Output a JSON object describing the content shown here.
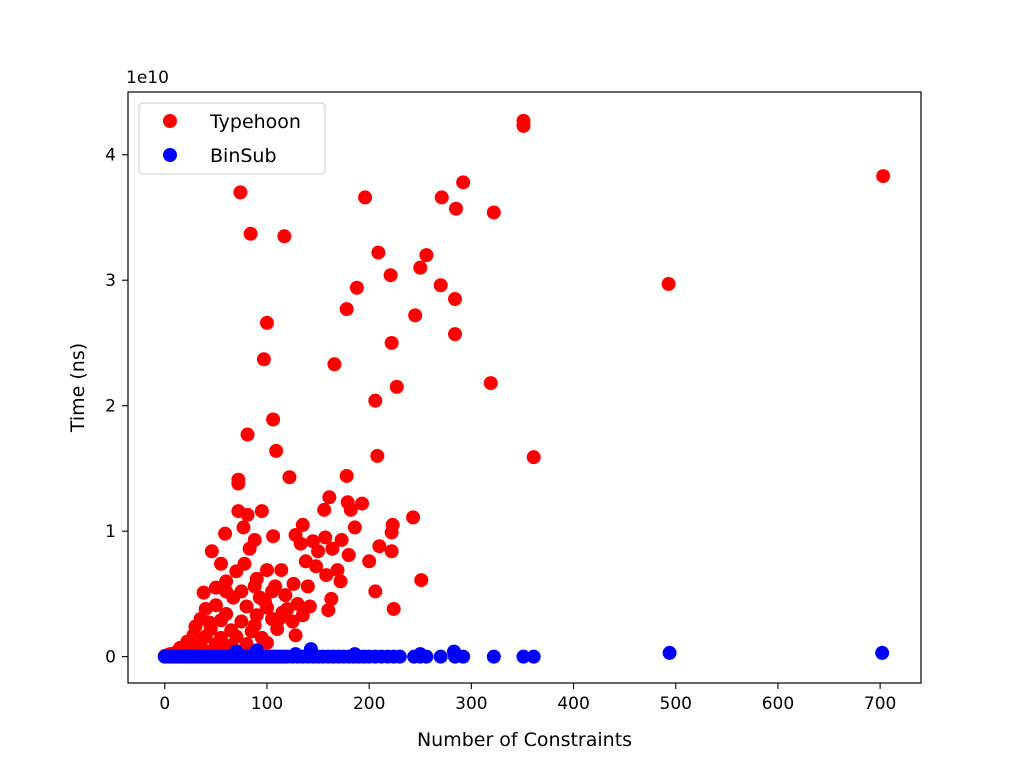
{
  "chart_data": {
    "type": "scatter",
    "xlabel": "Number of Constraints",
    "ylabel": "Time (ns)",
    "y_offset_label": "1e10",
    "xlim": [
      -36,
      740
    ],
    "ylim": [
      -0.21,
      4.5
    ],
    "y_unit_scale": "1e10",
    "x_ticks": [
      0,
      100,
      200,
      300,
      400,
      500,
      600,
      700
    ],
    "x_tick_labels": [
      "0",
      "100",
      "200",
      "300",
      "400",
      "500",
      "600",
      "700"
    ],
    "y_ticks": [
      0,
      1,
      2,
      3,
      4
    ],
    "y_tick_labels": [
      "0",
      "1",
      "2",
      "3",
      "4"
    ],
    "legend_position": "top-left",
    "series": [
      {
        "name": "Typehoon",
        "color": "#ff0000",
        "points": [
          [
            351,
            4.27
          ],
          [
            351,
            4.23
          ],
          [
            703,
            3.83
          ],
          [
            74,
            3.7
          ],
          [
            196,
            3.66
          ],
          [
            271,
            3.66
          ],
          [
            292,
            3.78
          ],
          [
            285,
            3.57
          ],
          [
            322,
            3.54
          ],
          [
            84,
            3.37
          ],
          [
            117,
            3.35
          ],
          [
            209,
            3.22
          ],
          [
            256,
            3.2
          ],
          [
            221,
            3.04
          ],
          [
            250,
            3.1
          ],
          [
            188,
            2.94
          ],
          [
            270,
            2.96
          ],
          [
            284,
            2.85
          ],
          [
            493,
            2.97
          ],
          [
            178,
            2.77
          ],
          [
            245,
            2.72
          ],
          [
            100,
            2.66
          ],
          [
            284,
            2.57
          ],
          [
            222,
            2.5
          ],
          [
            97,
            2.37
          ],
          [
            166,
            2.33
          ],
          [
            227,
            2.15
          ],
          [
            319,
            2.18
          ],
          [
            206,
            2.04
          ],
          [
            106,
            1.89
          ],
          [
            81,
            1.77
          ],
          [
            109,
            1.64
          ],
          [
            208,
            1.6
          ],
          [
            361,
            1.59
          ],
          [
            72,
            1.41
          ],
          [
            72,
            1.38
          ],
          [
            122,
            1.43
          ],
          [
            178,
            1.44
          ],
          [
            161,
            1.27
          ],
          [
            179,
            1.23
          ],
          [
            193,
            1.22
          ],
          [
            72,
            1.16
          ],
          [
            81,
            1.13
          ],
          [
            95,
            1.16
          ],
          [
            156,
            1.17
          ],
          [
            182,
            1.17
          ],
          [
            243,
            1.11
          ],
          [
            77,
            1.03
          ],
          [
            106,
            0.96
          ],
          [
            135,
            1.05
          ],
          [
            186,
            1.03
          ],
          [
            223,
            1.05
          ],
          [
            222,
            0.99
          ],
          [
            59,
            0.98
          ],
          [
            88,
            0.93
          ],
          [
            128,
            0.97
          ],
          [
            145,
            0.92
          ],
          [
            157,
            0.95
          ],
          [
            173,
            0.93
          ],
          [
            133,
            0.9
          ],
          [
            210,
            0.88
          ],
          [
            46,
            0.84
          ],
          [
            83,
            0.86
          ],
          [
            150,
            0.84
          ],
          [
            164,
            0.86
          ],
          [
            180,
            0.81
          ],
          [
            222,
            0.84
          ],
          [
            55,
            0.74
          ],
          [
            78,
            0.74
          ],
          [
            138,
            0.76
          ],
          [
            148,
            0.72
          ],
          [
            200,
            0.76
          ],
          [
            70,
            0.68
          ],
          [
            100,
            0.69
          ],
          [
            114,
            0.69
          ],
          [
            158,
            0.65
          ],
          [
            169,
            0.69
          ],
          [
            172,
            0.6
          ],
          [
            251,
            0.61
          ],
          [
            50,
            0.55
          ],
          [
            60,
            0.52
          ],
          [
            88,
            0.56
          ],
          [
            108,
            0.56
          ],
          [
            126,
            0.58
          ],
          [
            140,
            0.56
          ],
          [
            206,
            0.52
          ],
          [
            38,
            0.51
          ],
          [
            67,
            0.47
          ],
          [
            93,
            0.47
          ],
          [
            118,
            0.49
          ],
          [
            163,
            0.46
          ],
          [
            160,
            0.37
          ],
          [
            224,
            0.38
          ],
          [
            40,
            0.38
          ],
          [
            50,
            0.41
          ],
          [
            80,
            0.4
          ],
          [
            100,
            0.39
          ],
          [
            130,
            0.42
          ],
          [
            60,
            0.34
          ],
          [
            90,
            0.33
          ],
          [
            115,
            0.35
          ],
          [
            142,
            0.4
          ],
          [
            35,
            0.3
          ],
          [
            55,
            0.29
          ],
          [
            75,
            0.28
          ],
          [
            105,
            0.3
          ],
          [
            125,
            0.28
          ],
          [
            30,
            0.24
          ],
          [
            45,
            0.22
          ],
          [
            65,
            0.21
          ],
          [
            85,
            0.2
          ],
          [
            110,
            0.22
          ],
          [
            28,
            0.17
          ],
          [
            40,
            0.16
          ],
          [
            55,
            0.15
          ],
          [
            70,
            0.16
          ],
          [
            95,
            0.15
          ],
          [
            128,
            0.17
          ],
          [
            22,
            0.12
          ],
          [
            35,
            0.11
          ],
          [
            50,
            0.1
          ],
          [
            65,
            0.09
          ],
          [
            80,
            0.1
          ],
          [
            100,
            0.11
          ],
          [
            15,
            0.07
          ],
          [
            25,
            0.06
          ],
          [
            38,
            0.05
          ],
          [
            48,
            0.06
          ],
          [
            60,
            0.05
          ],
          [
            72,
            0.04
          ],
          [
            10,
            0.03
          ],
          [
            18,
            0.03
          ],
          [
            5,
            0.02
          ],
          [
            2,
            0.01
          ],
          [
            0,
            0.005
          ],
          [
            88,
            0.25
          ],
          [
            112,
            0.3
          ],
          [
            98,
            0.44
          ],
          [
            135,
            0.33
          ],
          [
            60,
            0.6
          ],
          [
            44,
            0.27
          ],
          [
            120,
            0.38
          ],
          [
            105,
            0.52
          ],
          [
            75,
            0.52
          ],
          [
            90,
            0.62
          ]
        ]
      },
      {
        "name": "BinSub",
        "color": "#0000ff",
        "points": [
          [
            0,
            0.0
          ],
          [
            3,
            0.0
          ],
          [
            6,
            0.0
          ],
          [
            9,
            0.0
          ],
          [
            12,
            0.0
          ],
          [
            15,
            0.0
          ],
          [
            18,
            0.0
          ],
          [
            21,
            0.0
          ],
          [
            24,
            0.0
          ],
          [
            27,
            0.0
          ],
          [
            30,
            0.0
          ],
          [
            33,
            0.0
          ],
          [
            36,
            0.0
          ],
          [
            39,
            0.0
          ],
          [
            42,
            0.0
          ],
          [
            45,
            0.0
          ],
          [
            48,
            0.0
          ],
          [
            51,
            0.0
          ],
          [
            54,
            0.0
          ],
          [
            57,
            0.0
          ],
          [
            60,
            0.0
          ],
          [
            63,
            0.0
          ],
          [
            66,
            0.0
          ],
          [
            69,
            0.0
          ],
          [
            72,
            0.0
          ],
          [
            75,
            0.0
          ],
          [
            78,
            0.0
          ],
          [
            81,
            0.0
          ],
          [
            84,
            0.0
          ],
          [
            87,
            0.0
          ],
          [
            90,
            0.0
          ],
          [
            93,
            0.0
          ],
          [
            96,
            0.0
          ],
          [
            99,
            0.0
          ],
          [
            102,
            0.0
          ],
          [
            105,
            0.0
          ],
          [
            108,
            0.0
          ],
          [
            111,
            0.0
          ],
          [
            114,
            0.0
          ],
          [
            117,
            0.0
          ],
          [
            120,
            0.0
          ],
          [
            125,
            0.0
          ],
          [
            130,
            0.0
          ],
          [
            135,
            0.0
          ],
          [
            140,
            0.0
          ],
          [
            145,
            0.0
          ],
          [
            150,
            0.0
          ],
          [
            155,
            0.0
          ],
          [
            160,
            0.0
          ],
          [
            165,
            0.0
          ],
          [
            170,
            0.0
          ],
          [
            175,
            0.0
          ],
          [
            180,
            0.0
          ],
          [
            185,
            0.0
          ],
          [
            190,
            0.0
          ],
          [
            195,
            0.0
          ],
          [
            200,
            0.0
          ],
          [
            206,
            0.0
          ],
          [
            212,
            0.0
          ],
          [
            218,
            0.0
          ],
          [
            224,
            0.0
          ],
          [
            230,
            0.0
          ],
          [
            244,
            0.0
          ],
          [
            250,
            0.0
          ],
          [
            256,
            0.0
          ],
          [
            270,
            0.0
          ],
          [
            284,
            0.0
          ],
          [
            292,
            0.0
          ],
          [
            322,
            0.0
          ],
          [
            351,
            0.0
          ],
          [
            361,
            0.0
          ],
          [
            494,
            0.03
          ],
          [
            702,
            0.03
          ],
          [
            143,
            0.06
          ],
          [
            90,
            0.05
          ],
          [
            70,
            0.04
          ],
          [
            283,
            0.04
          ],
          [
            128,
            0.02
          ],
          [
            250,
            0.02
          ],
          [
            186,
            0.02
          ]
        ]
      }
    ]
  }
}
